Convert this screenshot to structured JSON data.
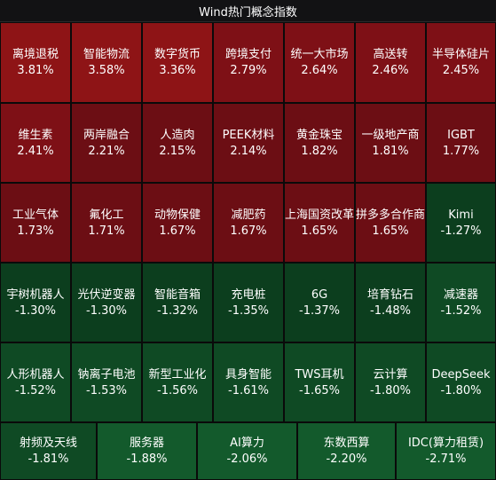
{
  "title": "Wind热门概念指数",
  "colors": {
    "red_strong": "#8e1416",
    "red_mid": "#7e1016",
    "red_dark": "#6c0e14",
    "green_dark": "#0c3e1e",
    "green_mid": "#0f4a24",
    "green_strong": "#135a2c"
  },
  "chart_data": {
    "type": "heatmap",
    "title": "Wind热门概念指数",
    "rows": [
      [
        {
          "name": "离境退税",
          "pct": "3.81%",
          "value": 3.81
        },
        {
          "name": "智能物流",
          "pct": "3.58%",
          "value": 3.58
        },
        {
          "name": "数字货币",
          "pct": "3.36%",
          "value": 3.36
        },
        {
          "name": "跨境支付",
          "pct": "2.79%",
          "value": 2.79
        },
        {
          "name": "统一大市场",
          "pct": "2.64%",
          "value": 2.64
        },
        {
          "name": "高送转",
          "pct": "2.46%",
          "value": 2.46
        },
        {
          "name": "半导体硅片",
          "pct": "2.45%",
          "value": 2.45
        }
      ],
      [
        {
          "name": "维生素",
          "pct": "2.41%",
          "value": 2.41
        },
        {
          "name": "两岸融合",
          "pct": "2.21%",
          "value": 2.21
        },
        {
          "name": "人造肉",
          "pct": "2.15%",
          "value": 2.15
        },
        {
          "name": "PEEK材料",
          "pct": "2.14%",
          "value": 2.14
        },
        {
          "name": "黄金珠宝",
          "pct": "1.82%",
          "value": 1.82
        },
        {
          "name": "一级地产商",
          "pct": "1.81%",
          "value": 1.81
        },
        {
          "name": "IGBT",
          "pct": "1.77%",
          "value": 1.77
        }
      ],
      [
        {
          "name": "工业气体",
          "pct": "1.73%",
          "value": 1.73
        },
        {
          "name": "氟化工",
          "pct": "1.71%",
          "value": 1.71
        },
        {
          "name": "动物保健",
          "pct": "1.67%",
          "value": 1.67
        },
        {
          "name": "减肥药",
          "pct": "1.67%",
          "value": 1.67
        },
        {
          "name": "上海国资改革",
          "pct": "1.65%",
          "value": 1.65
        },
        {
          "name": "拼多多合作商",
          "pct": "1.65%",
          "value": 1.65
        },
        {
          "name": "Kimi",
          "pct": "-1.27%",
          "value": -1.27
        }
      ],
      [
        {
          "name": "宇树机器人",
          "pct": "-1.30%",
          "value": -1.3
        },
        {
          "name": "光伏逆变器",
          "pct": "-1.30%",
          "value": -1.3
        },
        {
          "name": "智能音箱",
          "pct": "-1.32%",
          "value": -1.32
        },
        {
          "name": "充电桩",
          "pct": "-1.35%",
          "value": -1.35
        },
        {
          "name": "6G",
          "pct": "-1.37%",
          "value": -1.37
        },
        {
          "name": "培育钻石",
          "pct": "-1.48%",
          "value": -1.48
        },
        {
          "name": "减速器",
          "pct": "-1.52%",
          "value": -1.52
        }
      ],
      [
        {
          "name": "人形机器人",
          "pct": "-1.52%",
          "value": -1.52
        },
        {
          "name": "钠离子电池",
          "pct": "-1.53%",
          "value": -1.53
        },
        {
          "name": "新型工业化",
          "pct": "-1.56%",
          "value": -1.56
        },
        {
          "name": "具身智能",
          "pct": "-1.61%",
          "value": -1.61
        },
        {
          "name": "TWS耳机",
          "pct": "-1.65%",
          "value": -1.65
        },
        {
          "name": "云计算",
          "pct": "-1.80%",
          "value": -1.8
        },
        {
          "name": "DeepSeek",
          "pct": "-1.80%",
          "value": -1.8
        }
      ],
      [
        {
          "name": "射频及天线",
          "pct": "-1.81%",
          "value": -1.81
        },
        {
          "name": "服务器",
          "pct": "-1.88%",
          "value": -1.88
        },
        {
          "name": "AI算力",
          "pct": "-2.06%",
          "value": -2.06
        },
        {
          "name": "东数西算",
          "pct": "-2.20%",
          "value": -2.2
        },
        {
          "name": "IDC(算力租赁)",
          "pct": "-2.71%",
          "value": -2.71
        }
      ]
    ]
  }
}
